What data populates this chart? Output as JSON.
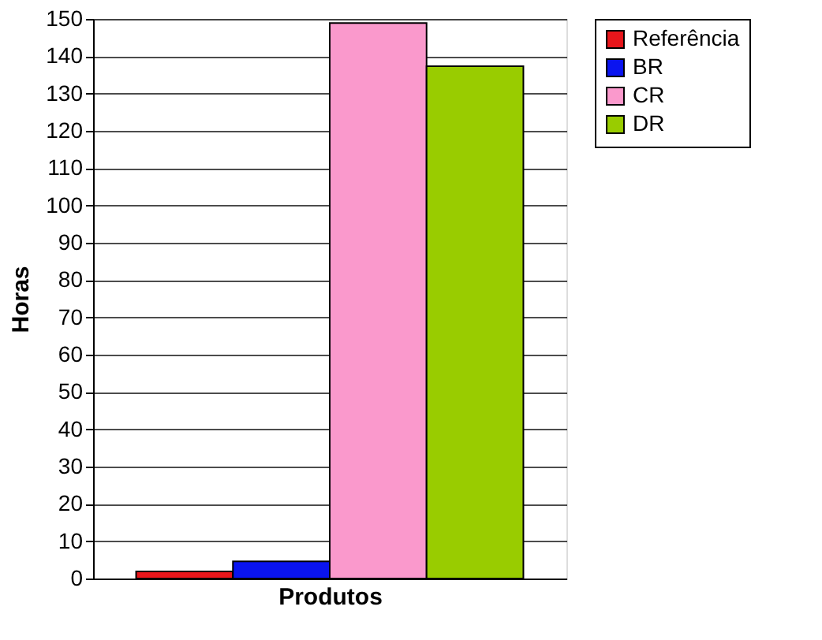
{
  "chart_data": {
    "type": "bar",
    "categories": [
      null
    ],
    "xlabel": "Produtos",
    "ylabel": "Horas",
    "series": [
      {
        "name": "Referência",
        "color": "#e8161b",
        "values": [
          1.9
        ]
      },
      {
        "name": "BR",
        "color": "#0a14f0",
        "values": [
          4.6
        ]
      },
      {
        "name": "CR",
        "color": "#fa99cc",
        "values": [
          148.9
        ]
      },
      {
        "name": "DR",
        "color": "#99cc00",
        "values": [
          137.3
        ]
      }
    ],
    "ylim": [
      0,
      150
    ],
    "yticks": [
      0,
      10,
      20,
      30,
      40,
      50,
      60,
      70,
      80,
      90,
      100,
      110,
      120,
      130,
      140,
      150
    ],
    "grid": "y",
    "legend": "right",
    "tick_labels": "y"
  }
}
